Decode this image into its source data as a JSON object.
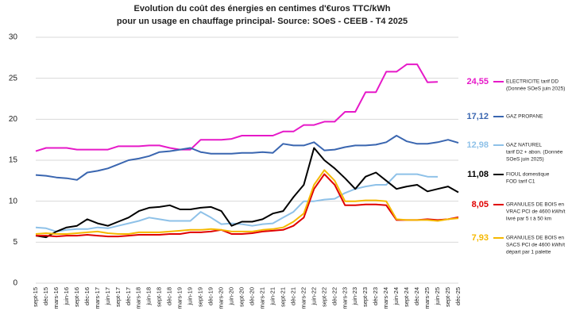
{
  "chart_data": {
    "type": "line",
    "title": [
      "Evolution du coût des énergies en centimes d'€uros TTC/kWh",
      "pour un usage en chauffage principal- Source: SOeS - CEEB - T4 2025"
    ],
    "categories": [
      "sept-15",
      "déc-15",
      "mars-16",
      "juin-16",
      "sept-16",
      "déc-16",
      "mars-17",
      "juin-17",
      "sept-17",
      "déc-17",
      "mars-18",
      "juin-18",
      "sept-18",
      "déc-18",
      "mars-19",
      "juin-19",
      "sept-19",
      "déc-19",
      "mars-20",
      "juin-20",
      "sept-20",
      "déc-20",
      "mars-21",
      "juin-21",
      "sept-21",
      "déc-21",
      "mars-22",
      "juin-22",
      "sept-22",
      "déc-22",
      "mars-23",
      "juin-23",
      "sept-23",
      "déc-23",
      "mars-24",
      "juin-24",
      "sept-24",
      "déc-24",
      "mars-25",
      "juin-25",
      "sept-25",
      "déc-25"
    ],
    "ylim": [
      0,
      30
    ],
    "yticks": [
      0,
      5,
      10,
      15,
      20,
      25,
      30
    ],
    "grid": true,
    "series": [
      {
        "name": [
          "ELECTRICITE tarif DD",
          "(Donnée SOeS juin 2025)"
        ],
        "color": "#e619c8",
        "values": [
          16.1,
          16.5,
          16.5,
          16.5,
          16.3,
          16.3,
          16.3,
          16.3,
          16.7,
          16.7,
          16.7,
          16.8,
          16.8,
          16.5,
          16.3,
          16.3,
          17.5,
          17.5,
          17.5,
          17.6,
          18.0,
          18.0,
          18.0,
          18.0,
          18.5,
          18.5,
          19.3,
          19.3,
          19.7,
          19.7,
          20.9,
          20.9,
          23.3,
          23.3,
          25.8,
          25.8,
          26.7,
          26.7,
          24.5,
          24.55,
          null,
          null
        ],
        "value_labels": [
          null,
          null,
          null,
          null,
          null,
          null,
          null,
          null,
          null,
          null,
          null,
          null,
          null,
          null,
          null,
          null,
          null,
          null,
          null,
          null,
          null,
          null,
          null,
          null,
          null,
          null,
          null,
          null,
          null,
          null,
          null,
          null,
          null,
          null,
          null,
          null,
          null,
          null,
          null,
          "24,55",
          null,
          null
        ]
      },
      {
        "name": [
          "GAZ PROPANE"
        ],
        "color": "#3a66b0",
        "values": [
          13.2,
          13.1,
          12.9,
          12.8,
          12.6,
          13.5,
          13.7,
          14.0,
          14.5,
          15.0,
          15.2,
          15.5,
          16.0,
          16.1,
          16.3,
          16.5,
          16.0,
          15.8,
          15.8,
          15.8,
          15.9,
          15.9,
          16.0,
          15.9,
          17.0,
          16.8,
          16.8,
          17.2,
          16.2,
          16.3,
          16.6,
          16.8,
          16.8,
          16.9,
          17.2,
          18.0,
          17.3,
          17.0,
          17.0,
          17.2,
          17.5,
          17.12
        ],
        "value_labels": [
          null,
          null,
          null,
          null,
          null,
          null,
          null,
          null,
          null,
          null,
          null,
          null,
          null,
          null,
          null,
          null,
          null,
          null,
          null,
          null,
          null,
          null,
          null,
          null,
          null,
          null,
          null,
          null,
          null,
          null,
          null,
          null,
          null,
          null,
          null,
          null,
          null,
          null,
          null,
          null,
          null,
          "17,12"
        ]
      },
      {
        "name": [
          "GAZ NATUREL",
          "tarif D2 + abon. (Donnée",
          "SOeS juin 2025)"
        ],
        "color": "#8ec1e8",
        "values": [
          6.8,
          6.7,
          6.3,
          6.5,
          6.6,
          6.6,
          6.8,
          6.7,
          7.0,
          7.3,
          7.6,
          8.0,
          7.8,
          7.6,
          7.6,
          7.6,
          8.7,
          8.0,
          7.2,
          7.3,
          7.2,
          7.0,
          7.2,
          7.3,
          8.0,
          8.7,
          10.0,
          10.0,
          10.2,
          10.3,
          11.0,
          11.5,
          11.8,
          12.0,
          12.0,
          13.3,
          13.3,
          13.3,
          13.0,
          12.98,
          null,
          null
        ],
        "value_labels": [
          null,
          null,
          null,
          null,
          null,
          null,
          null,
          null,
          null,
          null,
          null,
          null,
          null,
          null,
          null,
          null,
          null,
          null,
          null,
          null,
          null,
          null,
          null,
          null,
          null,
          null,
          null,
          null,
          null,
          null,
          null,
          null,
          null,
          null,
          null,
          null,
          null,
          null,
          null,
          "12,98",
          null,
          null
        ]
      },
      {
        "name": [
          "FIOUL domestique",
          "FOD tarif C1"
        ],
        "color": "#000000",
        "values": [
          5.8,
          5.6,
          6.3,
          6.8,
          7.0,
          7.8,
          7.3,
          7.0,
          7.5,
          8.0,
          8.8,
          9.2,
          9.3,
          9.5,
          9.0,
          9.0,
          9.2,
          9.3,
          8.8,
          7.0,
          7.5,
          7.5,
          7.8,
          8.5,
          8.8,
          10.5,
          12.0,
          16.5,
          15.0,
          14.0,
          12.8,
          11.5,
          13.0,
          13.5,
          12.5,
          11.5,
          11.8,
          12.0,
          11.2,
          11.5,
          11.8,
          11.08
        ],
        "value_labels": [
          null,
          null,
          null,
          null,
          null,
          null,
          null,
          null,
          null,
          null,
          null,
          null,
          null,
          null,
          null,
          null,
          null,
          null,
          null,
          null,
          null,
          null,
          null,
          null,
          null,
          null,
          null,
          null,
          null,
          null,
          null,
          null,
          null,
          null,
          null,
          null,
          null,
          null,
          null,
          null,
          null,
          "11,08"
        ]
      },
      {
        "name": [
          "GRANULES DE BOIS en",
          "VRAC PCI de 4600 kWh/t",
          "livré par 5 t à 50 km"
        ],
        "color": "#e00000",
        "values": [
          5.8,
          5.8,
          5.7,
          5.8,
          5.8,
          5.9,
          5.8,
          5.7,
          5.7,
          5.8,
          5.9,
          5.9,
          5.9,
          6.0,
          6.0,
          6.2,
          6.2,
          6.3,
          6.5,
          6.0,
          6.0,
          6.1,
          6.3,
          6.4,
          6.5,
          7.0,
          8.0,
          11.5,
          13.3,
          12.0,
          9.5,
          9.5,
          9.6,
          9.6,
          9.5,
          7.7,
          7.7,
          7.7,
          7.8,
          7.7,
          7.8,
          8.05
        ],
        "value_labels": [
          null,
          null,
          null,
          null,
          null,
          null,
          null,
          null,
          null,
          null,
          null,
          null,
          null,
          null,
          null,
          null,
          null,
          null,
          null,
          null,
          null,
          null,
          null,
          null,
          null,
          null,
          null,
          null,
          null,
          null,
          null,
          null,
          null,
          null,
          null,
          null,
          null,
          null,
          null,
          null,
          null,
          "8,05"
        ]
      },
      {
        "name": [
          "GRANULES DE BOIS en",
          "SACS PCI de 4600 kWh/t",
          "départ par 1 palette"
        ],
        "color": "#f5b800",
        "values": [
          6.0,
          6.1,
          6.0,
          6.0,
          6.1,
          6.2,
          6.3,
          6.1,
          6.0,
          6.0,
          6.2,
          6.2,
          6.2,
          6.3,
          6.4,
          6.5,
          6.5,
          6.6,
          6.5,
          6.3,
          6.3,
          6.3,
          6.5,
          6.6,
          6.8,
          7.5,
          8.5,
          12.0,
          13.8,
          12.5,
          10.0,
          10.0,
          10.1,
          10.1,
          10.0,
          7.8,
          7.7,
          7.7,
          7.7,
          7.6,
          7.8,
          7.93
        ],
        "value_labels": [
          null,
          null,
          null,
          null,
          null,
          null,
          null,
          null,
          null,
          null,
          null,
          null,
          null,
          null,
          null,
          null,
          null,
          null,
          null,
          null,
          null,
          null,
          null,
          null,
          null,
          null,
          null,
          null,
          null,
          null,
          null,
          null,
          null,
          null,
          null,
          null,
          null,
          null,
          null,
          null,
          null,
          "7,93"
        ]
      }
    ]
  }
}
